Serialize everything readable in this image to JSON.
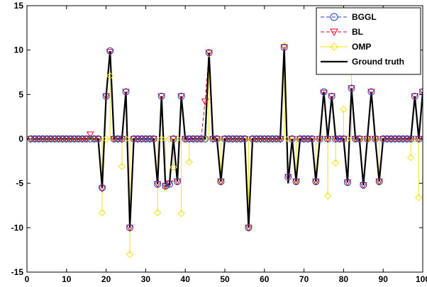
{
  "chart_data": {
    "type": "line",
    "title": "",
    "xlabel": "",
    "ylabel": "",
    "xlim": [
      0,
      100
    ],
    "ylim": [
      -15,
      15
    ],
    "xticks": [
      0,
      10,
      20,
      30,
      40,
      50,
      60,
      70,
      80,
      90,
      100
    ],
    "yticks": [
      -15,
      -10,
      -5,
      0,
      5,
      10,
      15
    ],
    "grid": false,
    "legend_position": "top-right",
    "x": [
      1,
      2,
      3,
      4,
      5,
      6,
      7,
      8,
      9,
      10,
      11,
      12,
      13,
      14,
      15,
      16,
      17,
      18,
      19,
      20,
      21,
      22,
      23,
      24,
      25,
      26,
      27,
      28,
      29,
      30,
      31,
      32,
      33,
      34,
      35,
      36,
      37,
      38,
      39,
      40,
      41,
      42,
      43,
      44,
      45,
      46,
      47,
      48,
      49,
      50,
      51,
      52,
      53,
      54,
      55,
      56,
      57,
      58,
      59,
      60,
      61,
      62,
      63,
      64,
      65,
      66,
      67,
      68,
      69,
      70,
      71,
      72,
      73,
      74,
      75,
      76,
      77,
      78,
      79,
      80,
      81,
      82,
      83,
      84,
      85,
      86,
      87,
      88,
      89,
      90,
      91,
      92,
      93,
      94,
      95,
      96,
      97,
      98,
      99,
      100
    ],
    "series": [
      {
        "name": "BGGL",
        "color": "#1f3fbf",
        "style": "dashed",
        "marker": "circle",
        "values": [
          0,
          0,
          0,
          0,
          0,
          0,
          0,
          0,
          0,
          0,
          0,
          0,
          0,
          0,
          0,
          0,
          0,
          0,
          -5.5,
          4.8,
          9.9,
          0,
          0,
          0,
          5.3,
          -10,
          0,
          0,
          0,
          0,
          0,
          0,
          -5.1,
          4.8,
          -5.3,
          -5.1,
          0,
          -4.8,
          4.8,
          0,
          0,
          0,
          0,
          0,
          0,
          9.7,
          0,
          0,
          -4.8,
          0,
          0,
          0,
          0,
          0,
          0,
          -10,
          0,
          0,
          0,
          0,
          0,
          0,
          0,
          0,
          10.3,
          -4.3,
          0,
          -4.8,
          0,
          0,
          0,
          0,
          -4.8,
          0,
          5.3,
          0,
          4.8,
          0,
          0,
          0,
          -4.9,
          5.7,
          0,
          0,
          -5.2,
          0,
          5.3,
          0,
          -4.8,
          0,
          0,
          0,
          0,
          0,
          0,
          0,
          0,
          4.8,
          0,
          5.3
        ]
      },
      {
        "name": "BL",
        "color": "#e8002a",
        "style": "dashed",
        "marker": "triangle-down",
        "values": [
          0,
          0,
          0,
          0,
          0,
          0,
          0,
          0,
          0,
          0,
          0,
          0,
          0,
          0,
          0,
          0.5,
          0,
          0,
          -5.6,
          4.8,
          9.8,
          0,
          0,
          0,
          5.3,
          -10,
          0,
          0,
          0,
          0,
          0,
          0,
          -5.1,
          4.8,
          -5.3,
          -5,
          0,
          -4.8,
          4.8,
          0,
          0,
          0,
          0,
          0,
          4.2,
          9.7,
          0,
          0,
          -4.8,
          0,
          0,
          0,
          0,
          0,
          0,
          -10,
          0,
          0,
          0,
          0,
          0,
          0,
          0,
          0,
          10.3,
          -4.3,
          0,
          -4.8,
          0,
          0,
          0,
          0,
          -4.8,
          0,
          5.2,
          0,
          4.8,
          0,
          0,
          0,
          -4.9,
          5.7,
          0,
          0,
          -5.2,
          0,
          5.3,
          0,
          -4.8,
          0,
          0,
          0,
          0,
          0,
          0,
          0,
          0,
          4.8,
          0,
          5.3
        ]
      },
      {
        "name": "OMP",
        "color": "#f0e21a",
        "style": "solid",
        "marker": "diamond",
        "values": [
          0,
          0,
          0,
          0,
          0,
          0,
          0,
          0,
          0,
          0,
          0,
          0,
          0,
          0,
          0,
          0,
          0,
          0,
          -8.3,
          0,
          7.1,
          0,
          0,
          -3.1,
          0,
          -13,
          0,
          0,
          0,
          0,
          0,
          0,
          -8.3,
          0,
          -5.5,
          0,
          -3.2,
          0,
          -8.4,
          0,
          -2.6,
          0,
          0,
          0,
          0,
          9.6,
          0,
          0,
          -4.8,
          0,
          0,
          0,
          0,
          0,
          0,
          -10,
          0,
          0,
          0,
          0,
          0,
          0,
          0,
          0,
          10.5,
          0,
          0,
          -4.8,
          0,
          0,
          0,
          0,
          -4.8,
          0,
          0,
          -6.4,
          0,
          -2.7,
          0,
          3.3,
          0,
          8.4,
          0,
          0,
          0,
          0,
          0,
          0,
          -4.8,
          0,
          0,
          0,
          0,
          0,
          0,
          0,
          -2.1,
          0,
          -6.6,
          0
        ]
      },
      {
        "name": "Ground truth",
        "color": "#000000",
        "style": "solid",
        "marker": "none",
        "values": [
          0,
          0,
          0,
          0,
          0,
          0,
          0,
          0,
          0,
          0,
          0,
          0,
          0,
          0,
          0,
          0,
          0,
          0,
          -5.5,
          4.8,
          9.9,
          0,
          0,
          0,
          5.3,
          -10,
          0,
          0,
          0,
          0,
          0,
          0,
          -5.1,
          4.8,
          -5.3,
          -5.1,
          0,
          -4.8,
          4.8,
          0,
          0,
          0,
          0,
          0,
          0,
          9.7,
          0,
          0,
          -4.8,
          0,
          0,
          0,
          0,
          0,
          0,
          -10,
          0,
          0,
          0,
          0,
          0,
          0,
          0,
          0,
          10.3,
          -5,
          0,
          -4.8,
          0,
          0,
          0,
          0,
          -4.8,
          0,
          5.3,
          0,
          4.8,
          0,
          0,
          0,
          -4.9,
          5.7,
          0,
          0,
          -5.2,
          0,
          5.3,
          0,
          -4.8,
          0,
          0,
          0,
          0,
          0,
          0,
          0,
          0,
          4.8,
          0,
          5.3
        ]
      }
    ]
  }
}
